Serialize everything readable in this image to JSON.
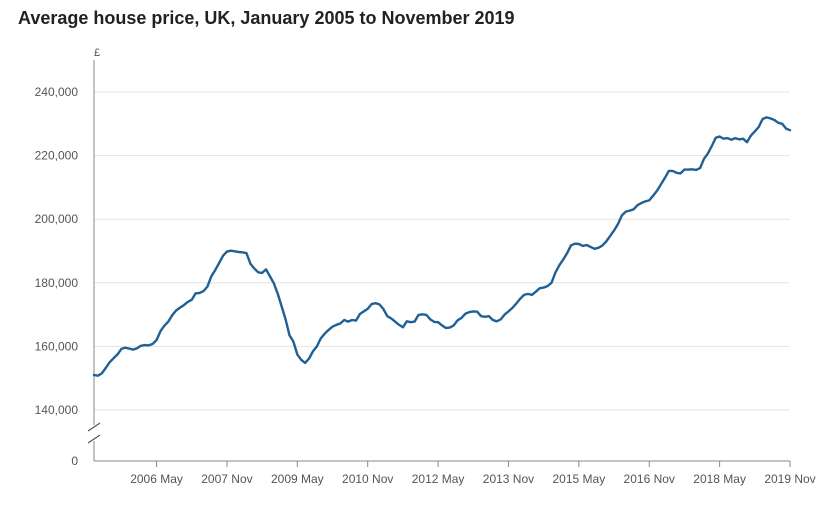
{
  "chart_data": {
    "type": "line",
    "title": "Average house price, UK, January 2005 to November 2019",
    "y_unit": "£",
    "xlabel": "",
    "ylabel": "",
    "ylim": [
      140000,
      240000
    ],
    "y_ticks": [
      "240,000",
      "220,000",
      "200,000",
      "180,000",
      "160,000",
      "140,000"
    ],
    "y_tick_values": [
      240000,
      220000,
      200000,
      180000,
      160000,
      140000
    ],
    "y_zero_label": "0",
    "x_range": [
      "2005-01",
      "2019-11"
    ],
    "x_tick_labels": [
      "2006 May",
      "2007 Nov",
      "2009 May",
      "2010 Nov",
      "2012 May",
      "2013 Nov",
      "2015 May",
      "2016 Nov",
      "2018 May",
      "2019 Nov"
    ],
    "x_tick_dates": [
      "2006-05",
      "2007-11",
      "2009-05",
      "2010-11",
      "2012-05",
      "2013-11",
      "2015-05",
      "2016-11",
      "2018-05",
      "2019-11"
    ],
    "grid": true,
    "axis_break": true,
    "line_color": "#206095",
    "series": [
      {
        "values": [
          [
            "2005-01",
            151000
          ],
          [
            "2005-02",
            150800
          ],
          [
            "2005-03",
            151500
          ],
          [
            "2005-04",
            153200
          ],
          [
            "2005-05",
            155000
          ],
          [
            "2005-06",
            156300
          ],
          [
            "2005-07",
            157500
          ],
          [
            "2005-08",
            159200
          ],
          [
            "2005-09",
            159600
          ],
          [
            "2005-10",
            159300
          ],
          [
            "2005-11",
            159000
          ],
          [
            "2005-12",
            159400
          ],
          [
            "2006-01",
            160200
          ],
          [
            "2006-02",
            160400
          ],
          [
            "2006-03",
            160300
          ],
          [
            "2006-04",
            160800
          ],
          [
            "2006-05",
            162000
          ],
          [
            "2006-06",
            164800
          ],
          [
            "2006-07",
            166500
          ],
          [
            "2006-08",
            167800
          ],
          [
            "2006-09",
            169800
          ],
          [
            "2006-10",
            171300
          ],
          [
            "2006-11",
            172200
          ],
          [
            "2006-12",
            173000
          ],
          [
            "2007-01",
            174000
          ],
          [
            "2007-02",
            174700
          ],
          [
            "2007-03",
            176700
          ],
          [
            "2007-04",
            176800
          ],
          [
            "2007-05",
            177400
          ],
          [
            "2007-06",
            178800
          ],
          [
            "2007-07",
            182000
          ],
          [
            "2007-08",
            184000
          ],
          [
            "2007-09",
            186200
          ],
          [
            "2007-10",
            188500
          ],
          [
            "2007-11",
            189800
          ],
          [
            "2007-12",
            190100
          ],
          [
            "2008-01",
            189900
          ],
          [
            "2008-02",
            189700
          ],
          [
            "2008-03",
            189600
          ],
          [
            "2008-04",
            189300
          ],
          [
            "2008-05",
            186000
          ],
          [
            "2008-06",
            184500
          ],
          [
            "2008-07",
            183300
          ],
          [
            "2008-08",
            183100
          ],
          [
            "2008-09",
            184200
          ],
          [
            "2008-10",
            182000
          ],
          [
            "2008-11",
            179800
          ],
          [
            "2008-12",
            176500
          ],
          [
            "2009-01",
            172500
          ],
          [
            "2009-02",
            168500
          ],
          [
            "2009-03",
            163500
          ],
          [
            "2009-04",
            161500
          ],
          [
            "2009-05",
            157500
          ],
          [
            "2009-06",
            155800
          ],
          [
            "2009-07",
            154800
          ],
          [
            "2009-08",
            156200
          ],
          [
            "2009-09",
            158500
          ],
          [
            "2009-10",
            160000
          ],
          [
            "2009-11",
            162500
          ],
          [
            "2009-12",
            164000
          ],
          [
            "2010-01",
            165200
          ],
          [
            "2010-02",
            166200
          ],
          [
            "2010-03",
            166800
          ],
          [
            "2010-04",
            167200
          ],
          [
            "2010-05",
            168300
          ],
          [
            "2010-06",
            167800
          ],
          [
            "2010-07",
            168300
          ],
          [
            "2010-08",
            168100
          ],
          [
            "2010-09",
            170200
          ],
          [
            "2010-10",
            171000
          ],
          [
            "2010-11",
            171800
          ],
          [
            "2010-12",
            173300
          ],
          [
            "2011-01",
            173600
          ],
          [
            "2011-02",
            173200
          ],
          [
            "2011-03",
            171800
          ],
          [
            "2011-04",
            169500
          ],
          [
            "2011-05",
            168800
          ],
          [
            "2011-06",
            167800
          ],
          [
            "2011-07",
            166800
          ],
          [
            "2011-08",
            166000
          ],
          [
            "2011-09",
            167900
          ],
          [
            "2011-10",
            167600
          ],
          [
            "2011-11",
            167800
          ],
          [
            "2011-12",
            169900
          ],
          [
            "2012-01",
            170100
          ],
          [
            "2012-02",
            169900
          ],
          [
            "2012-03",
            168500
          ],
          [
            "2012-04",
            167700
          ],
          [
            "2012-05",
            167600
          ],
          [
            "2012-06",
            166600
          ],
          [
            "2012-07",
            165800
          ],
          [
            "2012-08",
            165900
          ],
          [
            "2012-09",
            166600
          ],
          [
            "2012-10",
            168200
          ],
          [
            "2012-11",
            169000
          ],
          [
            "2012-12",
            170300
          ],
          [
            "2013-01",
            170800
          ],
          [
            "2013-02",
            171000
          ],
          [
            "2013-03",
            170900
          ],
          [
            "2013-04",
            169500
          ],
          [
            "2013-05",
            169300
          ],
          [
            "2013-06",
            169500
          ],
          [
            "2013-07",
            168300
          ],
          [
            "2013-08",
            167900
          ],
          [
            "2013-09",
            168500
          ],
          [
            "2013-10",
            170000
          ],
          [
            "2013-11",
            171000
          ],
          [
            "2013-12",
            172100
          ],
          [
            "2014-01",
            173500
          ],
          [
            "2014-02",
            175000
          ],
          [
            "2014-03",
            176200
          ],
          [
            "2014-04",
            176500
          ],
          [
            "2014-05",
            176200
          ],
          [
            "2014-06",
            177200
          ],
          [
            "2014-07",
            178300
          ],
          [
            "2014-08",
            178500
          ],
          [
            "2014-09",
            179000
          ],
          [
            "2014-10",
            180000
          ],
          [
            "2014-11",
            183200
          ],
          [
            "2014-12",
            185500
          ],
          [
            "2015-01",
            187300
          ],
          [
            "2015-02",
            189300
          ],
          [
            "2015-03",
            191800
          ],
          [
            "2015-04",
            192300
          ],
          [
            "2015-05",
            192200
          ],
          [
            "2015-06",
            191600
          ],
          [
            "2015-07",
            191900
          ],
          [
            "2015-08",
            191300
          ],
          [
            "2015-09",
            190700
          ],
          [
            "2015-10",
            191000
          ],
          [
            "2015-11",
            191700
          ],
          [
            "2015-12",
            193000
          ],
          [
            "2016-01",
            194700
          ],
          [
            "2016-02",
            196400
          ],
          [
            "2016-03",
            198500
          ],
          [
            "2016-04",
            201200
          ],
          [
            "2016-05",
            202400
          ],
          [
            "2016-06",
            202700
          ],
          [
            "2016-07",
            203100
          ],
          [
            "2016-08",
            204400
          ],
          [
            "2016-09",
            205100
          ],
          [
            "2016-10",
            205600
          ],
          [
            "2016-11",
            205900
          ],
          [
            "2016-12",
            207400
          ],
          [
            "2017-01",
            209000
          ],
          [
            "2017-02",
            211000
          ],
          [
            "2017-03",
            213000
          ],
          [
            "2017-04",
            215200
          ],
          [
            "2017-05",
            215200
          ],
          [
            "2017-06",
            214600
          ],
          [
            "2017-07",
            214400
          ],
          [
            "2017-08",
            215600
          ],
          [
            "2017-09",
            215600
          ],
          [
            "2017-10",
            215700
          ],
          [
            "2017-11",
            215500
          ],
          [
            "2017-12",
            216100
          ],
          [
            "2018-01",
            219000
          ],
          [
            "2018-02",
            220700
          ],
          [
            "2018-03",
            223000
          ],
          [
            "2018-04",
            225600
          ],
          [
            "2018-05",
            226000
          ],
          [
            "2018-06",
            225300
          ],
          [
            "2018-07",
            225500
          ],
          [
            "2018-08",
            225000
          ],
          [
            "2018-09",
            225500
          ],
          [
            "2018-10",
            225100
          ],
          [
            "2018-11",
            225300
          ],
          [
            "2018-12",
            224200
          ],
          [
            "2019-01",
            226300
          ],
          [
            "2019-02",
            227600
          ],
          [
            "2019-03",
            229000
          ],
          [
            "2019-04",
            231500
          ],
          [
            "2019-05",
            232000
          ],
          [
            "2019-06",
            231700
          ],
          [
            "2019-07",
            231200
          ],
          [
            "2019-08",
            230300
          ],
          [
            "2019-09",
            230000
          ],
          [
            "2019-10",
            228500
          ],
          [
            "2019-11",
            228000
          ]
        ]
      }
    ]
  }
}
